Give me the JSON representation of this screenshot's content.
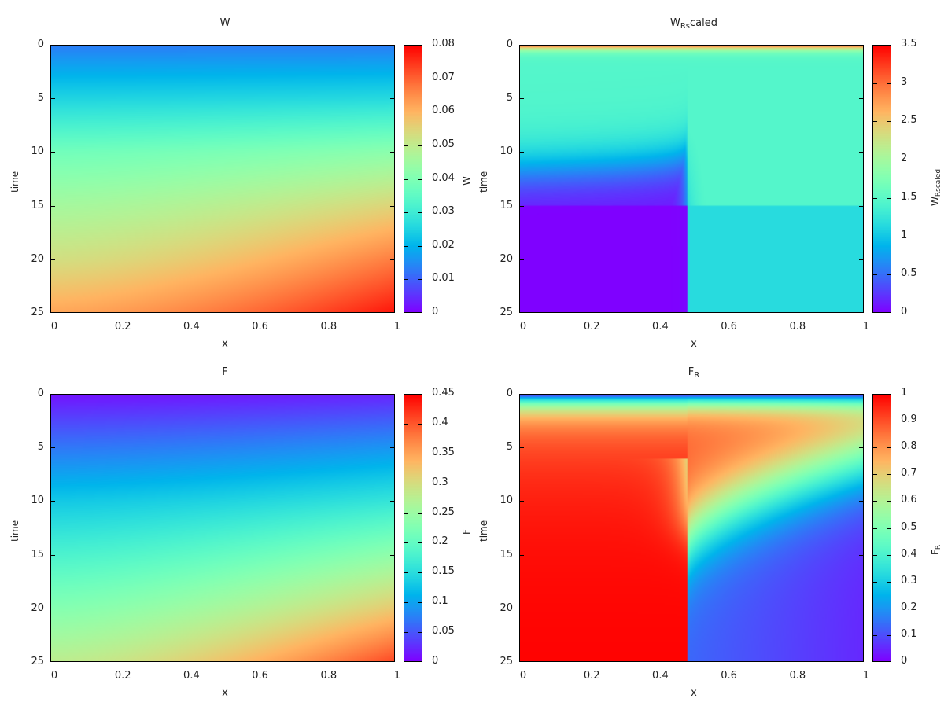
{
  "chart_data": [
    {
      "type": "heatmap",
      "id": "W",
      "title": "W",
      "title_sub": "",
      "title_suffix": "",
      "xlabel": "x",
      "ylabel": "time",
      "colorbar_label": "W",
      "colorbar_label_sub": "",
      "xlim": [
        0,
        1
      ],
      "ylim": [
        25,
        0
      ],
      "clim": [
        0,
        0.08
      ],
      "xticks": [
        "0",
        "0.2",
        "0.4",
        "0.6",
        "0.8",
        "1"
      ],
      "yticks": [
        "0",
        "5",
        "10",
        "15",
        "20",
        "25"
      ],
      "cticks": [
        "0",
        "0.01",
        "0.02",
        "0.03",
        "0.04",
        "0.05",
        "0.06",
        "0.07",
        "0.08"
      ],
      "field_description": "W grows smoothly with time and slightly with x; ~0.015 at t=0, ~0.045 at t=12, ~0.06 at t=25 x=0, ~0.078 at t=25 x=1",
      "samples": {
        "t": [
          0,
          5,
          10,
          15,
          20,
          25
        ],
        "x0": [
          0.013,
          0.025,
          0.038,
          0.046,
          0.053,
          0.062
        ],
        "x1": [
          0.013,
          0.026,
          0.042,
          0.055,
          0.067,
          0.078
        ]
      }
    },
    {
      "type": "heatmap",
      "id": "WRscaled",
      "title": "W",
      "title_sub": "Rs",
      "title_suffix": "caled",
      "xlabel": "x",
      "ylabel": "time",
      "colorbar_label": "W",
      "colorbar_label_sub": "Rscaled",
      "xlim": [
        0,
        1
      ],
      "ylim": [
        25,
        0
      ],
      "clim": [
        0,
        3.5
      ],
      "xticks": [
        "0",
        "0.2",
        "0.4",
        "0.6",
        "0.8",
        "1"
      ],
      "yticks": [
        "0",
        "5",
        "10",
        "15",
        "20",
        "25"
      ],
      "cticks": [
        "0",
        "0.5",
        "1",
        "1.5",
        "2",
        "2.5",
        "3",
        "3.5"
      ],
      "field_description": "Starts ~3.5 at t=0, drops rapidly to ~1.5; for x<0.49 decays to ~0 after t~14, for x>0.49 stays ~1.2-1.6",
      "front_x": 0.49
    },
    {
      "type": "heatmap",
      "id": "F",
      "title": "F",
      "title_sub": "",
      "title_suffix": "",
      "xlabel": "x",
      "ylabel": "time",
      "colorbar_label": "F",
      "colorbar_label_sub": "",
      "xlim": [
        0,
        1
      ],
      "ylim": [
        25,
        0
      ],
      "clim": [
        0,
        0.45
      ],
      "xticks": [
        "0",
        "0.2",
        "0.4",
        "0.6",
        "0.8",
        "1"
      ],
      "yticks": [
        "0",
        "5",
        "10",
        "15",
        "20",
        "25"
      ],
      "cticks": [
        "0",
        "0.05",
        "0.1",
        "0.15",
        "0.2",
        "0.25",
        "0.3",
        "0.35",
        "0.4",
        "0.45"
      ],
      "field_description": "F ~0.01 at t=0, increases with time and x; ~0.28 at t=25 x=0, ~0.4 at t=25 x=1",
      "samples": {
        "t": [
          0,
          5,
          10,
          15,
          20,
          25
        ],
        "x0": [
          0.01,
          0.07,
          0.13,
          0.18,
          0.23,
          0.28
        ],
        "x1": [
          0.02,
          0.09,
          0.16,
          0.24,
          0.32,
          0.41
        ]
      }
    },
    {
      "type": "heatmap",
      "id": "FR",
      "title": "F",
      "title_sub": "R",
      "title_suffix": "",
      "xlabel": "x",
      "ylabel": "time",
      "colorbar_label": "F",
      "colorbar_label_sub": "R",
      "xlim": [
        0,
        1
      ],
      "ylim": [
        25,
        0
      ],
      "clim": [
        0,
        1
      ],
      "xticks": [
        "0",
        "0.2",
        "0.4",
        "0.6",
        "0.8",
        "1"
      ],
      "yticks": [
        "0",
        "5",
        "10",
        "15",
        "20",
        "25"
      ],
      "cticks": [
        "0",
        "0.1",
        "0.2",
        "0.3",
        "0.4",
        "0.5",
        "0.6",
        "0.7",
        "0.8",
        "0.9",
        "1"
      ],
      "field_description": "~0 at t=0, rises to ~0.9 by t~3; for x<0.49 tends to 1.0 after t~14; for x>0.49 decays to ~0.05 at late time, faster near x=1",
      "front_x": 0.49
    }
  ]
}
